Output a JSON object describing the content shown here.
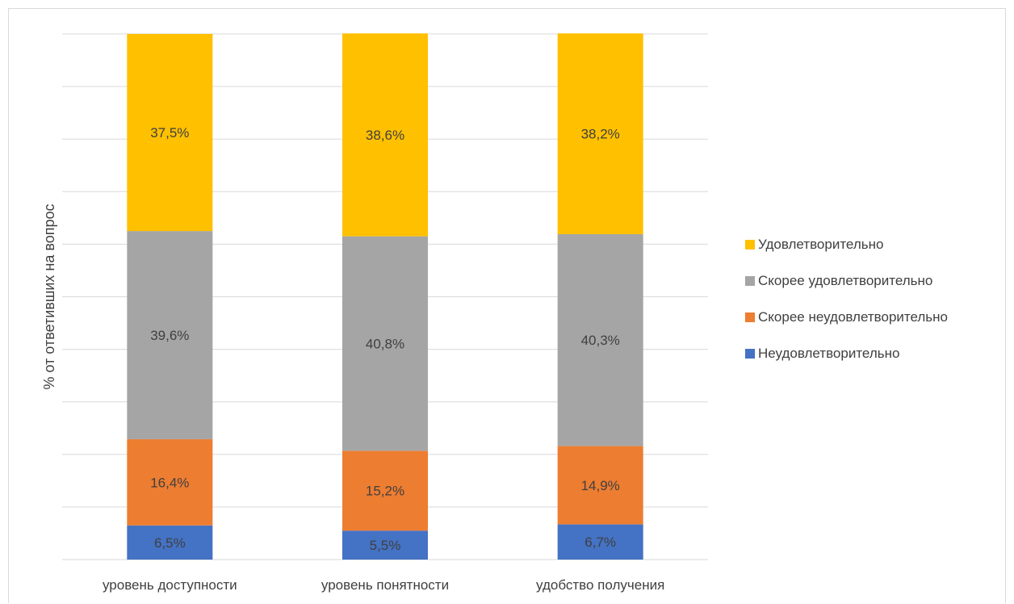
{
  "chart_data": {
    "type": "bar",
    "stacked": true,
    "percent_stacked": true,
    "categories": [
      "уровень доступности",
      "уровень понятности",
      "удобство получения"
    ],
    "series": [
      {
        "name": "Неудовлетворительно",
        "values": [
          6.5,
          5.5,
          6.7
        ],
        "labels": [
          "6,5%",
          "5,5%",
          "6,7%"
        ],
        "color": "#4472C4"
      },
      {
        "name": "Скорее неудовлетворительно",
        "values": [
          16.4,
          15.2,
          14.9
        ],
        "labels": [
          "16,4%",
          "15,2%",
          "14,9%"
        ],
        "color": "#ED7D31"
      },
      {
        "name": "Скорее удовлетворительно",
        "values": [
          39.6,
          40.8,
          40.3
        ],
        "labels": [
          "39,6%",
          "40,8%",
          "40,3%"
        ],
        "color": "#A5A5A5"
      },
      {
        "name": "Удовлетворительно",
        "values": [
          37.5,
          38.6,
          38.2
        ],
        "labels": [
          "37,5%",
          "38,6%",
          "38,2%"
        ],
        "color": "#FFC000"
      }
    ],
    "ylabel": "% от ответивших на вопрос",
    "xlabel": "",
    "ylim": [
      0,
      100
    ],
    "gridlines": true,
    "gridline_count": 10,
    "y_tick_labels_shown": false,
    "legend_position": "right",
    "legend_order": [
      "Удовлетворительно",
      "Скорее удовлетворительно",
      "Скорее неудовлетворительно",
      "Неудовлетворительно"
    ]
  }
}
